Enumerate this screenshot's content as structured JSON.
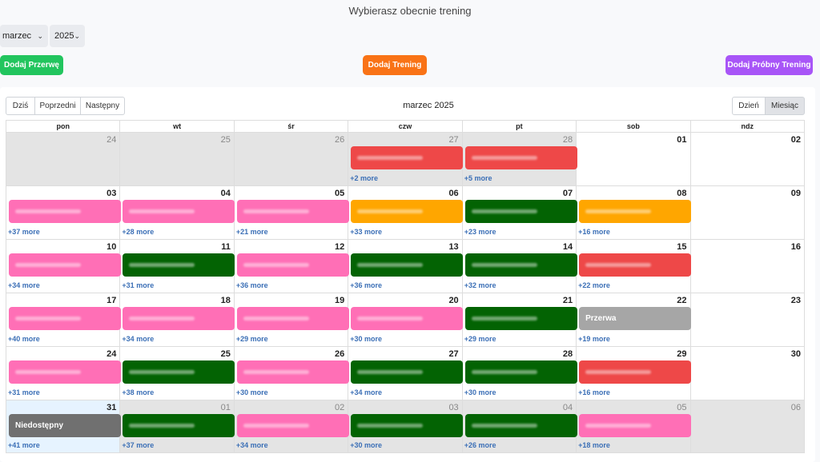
{
  "page": {
    "title": "Wybierasz obecnie trening"
  },
  "filters": {
    "month": "marzec",
    "year": "2025"
  },
  "actions": {
    "add_break": "Dodaj Przerwę",
    "add_training": "Dodaj Trening",
    "add_trial": "Dodaj Próbny Trening"
  },
  "toolbar": {
    "today": "Dziś",
    "prev": "Poprzedni",
    "next": "Następny",
    "title": "marzec 2025",
    "view_day": "Dzień",
    "view_month": "Miesiąc"
  },
  "weekdays": [
    "pon",
    "wt",
    "śr",
    "czw",
    "pt",
    "sob",
    "ndz"
  ],
  "colors": {
    "red": "#ee4848",
    "pink": "#ff6fb6",
    "orange": "#ffa600",
    "green": "#036303",
    "gray": "#a6a6a6",
    "darkgray": "#707070",
    "add_break": "#22c55e",
    "add_training": "#f97316",
    "add_trial": "#a855f7"
  },
  "weeks": [
    [
      {
        "d": "24",
        "other": true,
        "more": ""
      },
      {
        "d": "25",
        "other": true,
        "more": ""
      },
      {
        "d": "26",
        "other": true,
        "more": ""
      },
      {
        "d": "27",
        "other": true,
        "ev": "red",
        "more": "+2 more"
      },
      {
        "d": "28",
        "other": true,
        "ev": "red",
        "more": "+5 more"
      },
      {
        "d": "01",
        "more": ""
      },
      {
        "d": "02",
        "more": ""
      }
    ],
    [
      {
        "d": "03",
        "ev": "pink",
        "more": "+37 more"
      },
      {
        "d": "04",
        "ev": "pink",
        "more": "+28 more"
      },
      {
        "d": "05",
        "ev": "pink",
        "more": "+21 more"
      },
      {
        "d": "06",
        "ev": "orange",
        "more": "+33 more"
      },
      {
        "d": "07",
        "ev": "green",
        "more": "+23 more"
      },
      {
        "d": "08",
        "ev": "orange",
        "more": "+16 more"
      },
      {
        "d": "09",
        "more": ""
      }
    ],
    [
      {
        "d": "10",
        "ev": "pink",
        "more": "+34 more"
      },
      {
        "d": "11",
        "ev": "green",
        "more": "+31 more"
      },
      {
        "d": "12",
        "ev": "pink",
        "more": "+36 more"
      },
      {
        "d": "13",
        "ev": "green",
        "more": "+36 more"
      },
      {
        "d": "14",
        "ev": "green",
        "more": "+32 more"
      },
      {
        "d": "15",
        "ev": "red",
        "more": "+22 more"
      },
      {
        "d": "16",
        "more": ""
      }
    ],
    [
      {
        "d": "17",
        "ev": "pink",
        "more": "+40 more"
      },
      {
        "d": "18",
        "ev": "pink",
        "more": "+34 more"
      },
      {
        "d": "19",
        "ev": "pink",
        "more": "+29 more"
      },
      {
        "d": "20",
        "ev": "pink",
        "more": "+30 more"
      },
      {
        "d": "21",
        "ev": "green",
        "more": "+29 more"
      },
      {
        "d": "22",
        "ev": "gray",
        "label": "Przerwa",
        "more": "+19 more"
      },
      {
        "d": "23",
        "more": ""
      }
    ],
    [
      {
        "d": "24",
        "ev": "pink",
        "more": "+31 more"
      },
      {
        "d": "25",
        "ev": "green",
        "more": "+38 more"
      },
      {
        "d": "26",
        "ev": "pink",
        "more": "+30 more"
      },
      {
        "d": "27",
        "ev": "green",
        "more": "+34 more"
      },
      {
        "d": "28",
        "ev": "green",
        "more": "+30 more"
      },
      {
        "d": "29",
        "ev": "red",
        "more": "+16 more"
      },
      {
        "d": "30",
        "more": ""
      }
    ],
    [
      {
        "d": "31",
        "today": true,
        "ev": "darkgray",
        "label": "Niedostępny",
        "more": "+41 more"
      },
      {
        "d": "01",
        "other": true,
        "ev": "green",
        "more": "+37 more"
      },
      {
        "d": "02",
        "other": true,
        "ev": "pink",
        "more": "+34 more"
      },
      {
        "d": "03",
        "other": true,
        "ev": "green",
        "more": "+30 more"
      },
      {
        "d": "04",
        "other": true,
        "ev": "green",
        "more": "+26 more"
      },
      {
        "d": "05",
        "other": true,
        "ev": "pink",
        "more": "+18 more"
      },
      {
        "d": "06",
        "other": true,
        "more": ""
      }
    ]
  ]
}
